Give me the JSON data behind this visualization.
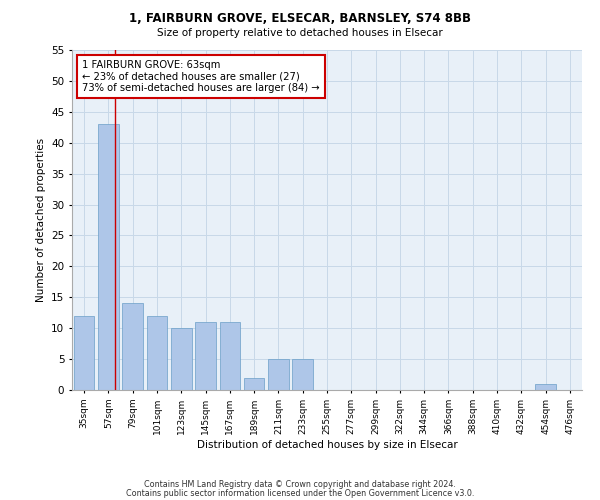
{
  "title1": "1, FAIRBURN GROVE, ELSECAR, BARNSLEY, S74 8BB",
  "title2": "Size of property relative to detached houses in Elsecar",
  "xlabel": "Distribution of detached houses by size in Elsecar",
  "ylabel": "Number of detached properties",
  "categories": [
    "35sqm",
    "57sqm",
    "79sqm",
    "101sqm",
    "123sqm",
    "145sqm",
    "167sqm",
    "189sqm",
    "211sqm",
    "233sqm",
    "255sqm",
    "277sqm",
    "299sqm",
    "322sqm",
    "344sqm",
    "366sqm",
    "388sqm",
    "410sqm",
    "432sqm",
    "454sqm",
    "476sqm"
  ],
  "values": [
    12,
    43,
    14,
    12,
    10,
    11,
    11,
    2,
    5,
    5,
    0,
    0,
    0,
    0,
    0,
    0,
    0,
    0,
    0,
    1,
    0
  ],
  "bar_color": "#aec6e8",
  "bar_edge_color": "#6a9fc8",
  "grid_color": "#c8d8e8",
  "background_color": "#e8f0f8",
  "property_line_x": 1.27,
  "annotation_text": "1 FAIRBURN GROVE: 63sqm\n← 23% of detached houses are smaller (27)\n73% of semi-detached houses are larger (84) →",
  "annotation_box_color": "#ffffff",
  "annotation_box_edge_color": "#cc0000",
  "line_color": "#cc0000",
  "ylim": [
    0,
    55
  ],
  "yticks": [
    0,
    5,
    10,
    15,
    20,
    25,
    30,
    35,
    40,
    45,
    50,
    55
  ],
  "footer1": "Contains HM Land Registry data © Crown copyright and database right 2024.",
  "footer2": "Contains public sector information licensed under the Open Government Licence v3.0."
}
